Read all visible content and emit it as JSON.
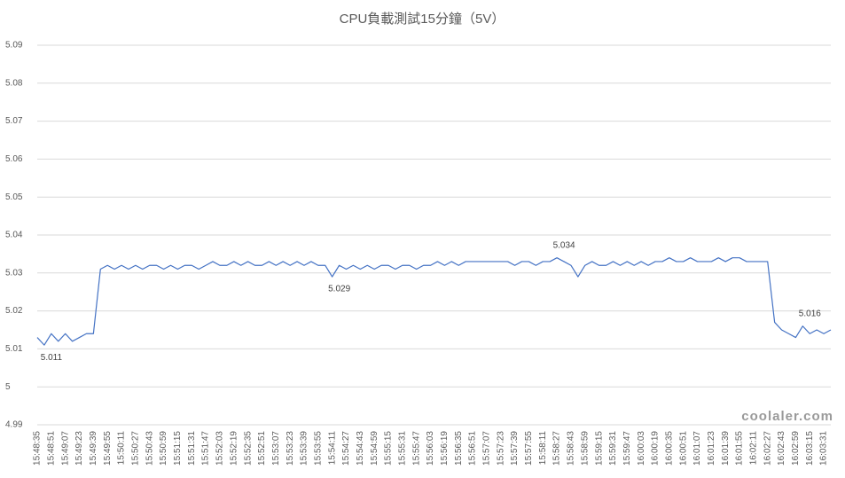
{
  "chart_data": {
    "type": "line",
    "title": "CPU負載測試15分鐘（5V）",
    "categories": [
      "15:48:35",
      null,
      "15:48:51",
      null,
      "15:49:07",
      null,
      "15:49:23",
      null,
      "15:49:39",
      null,
      "15:49:55",
      null,
      "15:50:11",
      null,
      "15:50:27",
      null,
      "15:50:43",
      null,
      "15:50:59",
      null,
      "15:51:15",
      null,
      "15:51:31",
      null,
      "15:51:47",
      null,
      "15:52:03",
      null,
      "15:52:19",
      null,
      "15:52:35",
      null,
      "15:52:51",
      null,
      "15:53:07",
      null,
      "15:53:23",
      null,
      "15:53:39",
      null,
      "15:53:55",
      null,
      "15:54:11",
      null,
      "15:54:27",
      null,
      "15:54:43",
      null,
      "15:54:59",
      null,
      "15:55:15",
      null,
      "15:55:31",
      null,
      "15:55:47",
      null,
      "15:56:03",
      null,
      "15:56:19",
      null,
      "15:56:35",
      null,
      "15:56:51",
      null,
      "15:57:07",
      null,
      "15:57:23",
      null,
      "15:57:39",
      null,
      "15:57:55",
      null,
      "15:58:11",
      null,
      "15:58:27",
      null,
      "15:58:43",
      null,
      "15:58:59",
      null,
      "15:59:15",
      null,
      "15:59:31",
      null,
      "15:59:47",
      null,
      "16:00:03",
      null,
      "16:00:19",
      null,
      "16:00:35",
      null,
      "16:00:51",
      null,
      "16:01:07",
      null,
      "16:01:23",
      null,
      "16:01:39",
      null,
      "16:01:55",
      null,
      "16:02:11",
      null,
      "16:02:27",
      null,
      "16:02:43",
      null,
      "16:02:59",
      null,
      "16:03:15",
      null,
      "16:03:31",
      null
    ],
    "series": [
      {
        "color": "#4472c4",
        "values": [
          5.013,
          5.011,
          5.014,
          5.012,
          5.014,
          5.012,
          5.013,
          5.014,
          5.014,
          5.031,
          5.032,
          5.031,
          5.032,
          5.031,
          5.032,
          5.031,
          5.032,
          5.032,
          5.031,
          5.032,
          5.031,
          5.032,
          5.032,
          5.031,
          5.032,
          5.033,
          5.032,
          5.032,
          5.033,
          5.032,
          5.033,
          5.032,
          5.032,
          5.033,
          5.032,
          5.033,
          5.032,
          5.033,
          5.032,
          5.033,
          5.032,
          5.032,
          5.029,
          5.032,
          5.031,
          5.032,
          5.031,
          5.032,
          5.031,
          5.032,
          5.032,
          5.031,
          5.032,
          5.032,
          5.031,
          5.032,
          5.032,
          5.033,
          5.032,
          5.033,
          5.032,
          5.033,
          5.033,
          5.033,
          5.033,
          5.033,
          5.033,
          5.033,
          5.032,
          5.033,
          5.033,
          5.032,
          5.033,
          5.033,
          5.034,
          5.033,
          5.032,
          5.029,
          5.032,
          5.033,
          5.032,
          5.032,
          5.033,
          5.032,
          5.033,
          5.032,
          5.033,
          5.032,
          5.033,
          5.033,
          5.034,
          5.033,
          5.033,
          5.034,
          5.033,
          5.033,
          5.033,
          5.034,
          5.033,
          5.034,
          5.034,
          5.033,
          5.033,
          5.033,
          5.033,
          5.017,
          5.015,
          5.014,
          5.013,
          5.016,
          5.014,
          5.015,
          5.014,
          5.015
        ],
        "value_labels": [
          null,
          "5.011",
          null,
          null,
          null,
          null,
          null,
          null,
          null,
          null,
          null,
          null,
          null,
          null,
          null,
          null,
          null,
          null,
          null,
          null,
          null,
          null,
          null,
          null,
          null,
          null,
          null,
          null,
          null,
          null,
          null,
          null,
          null,
          null,
          null,
          null,
          null,
          null,
          null,
          null,
          null,
          null,
          "5.029",
          null,
          null,
          null,
          null,
          null,
          null,
          null,
          null,
          null,
          null,
          null,
          null,
          null,
          null,
          null,
          null,
          null,
          null,
          null,
          null,
          null,
          null,
          null,
          null,
          null,
          null,
          null,
          null,
          null,
          null,
          null,
          "5.034",
          null,
          null,
          null,
          null,
          null,
          null,
          null,
          null,
          null,
          null,
          null,
          null,
          null,
          null,
          null,
          null,
          null,
          null,
          null,
          null,
          null,
          null,
          null,
          null,
          null,
          null,
          null,
          null,
          null,
          null,
          null,
          null,
          null,
          null,
          "5.016",
          null,
          null,
          null,
          null
        ]
      }
    ],
    "ylim": [
      4.99,
      5.09
    ],
    "yticks": [
      4.99,
      5,
      5.01,
      5.02,
      5.03,
      5.04,
      5.05,
      5.06,
      5.07,
      5.08,
      5.09
    ],
    "grid": true
  },
  "watermark": "coolaler.com"
}
